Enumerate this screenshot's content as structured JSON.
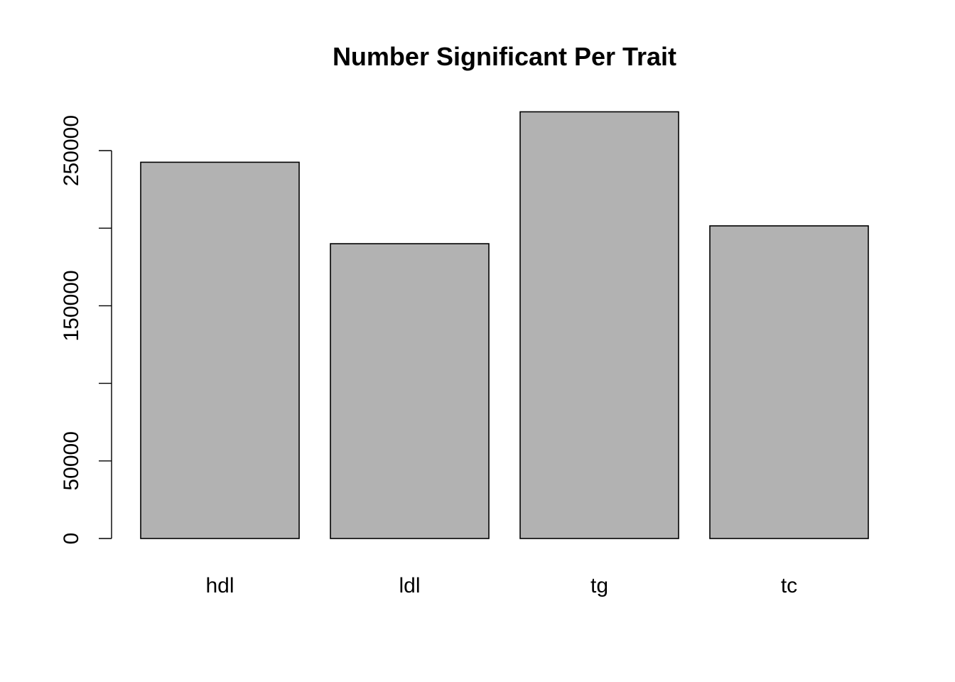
{
  "chart_data": {
    "type": "bar",
    "title": "Number Significant Per Trait",
    "xlabel": "",
    "ylabel": "",
    "categories": [
      "hdl",
      "ldl",
      "tg",
      "tc"
    ],
    "values": [
      242500,
      190000,
      275000,
      201500
    ],
    "ylim": [
      0,
      275000
    ],
    "y_ticks": [
      0,
      50000,
      100000,
      150000,
      200000,
      250000
    ],
    "y_tick_labels": [
      "0",
      "50000",
      "",
      "150000",
      "",
      "250000"
    ],
    "grid": false,
    "legend": "none",
    "colors": {
      "bar_fill": "#b2b2b2",
      "bar_border": "#000000",
      "background": "#ffffff"
    }
  }
}
